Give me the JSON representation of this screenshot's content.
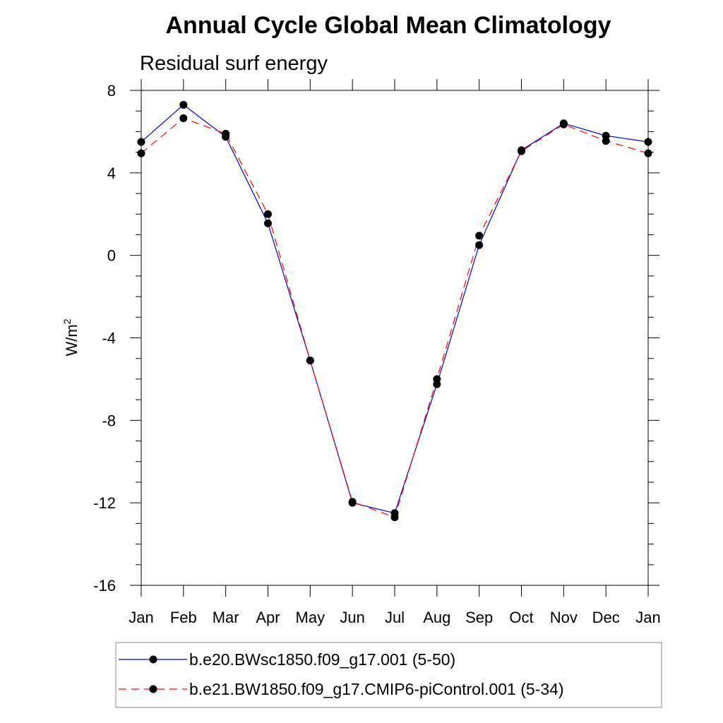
{
  "chart_data": {
    "type": "line",
    "title": "Annual Cycle Global Mean Climatology",
    "subtitle": "Residual surf energy",
    "xlabel": "",
    "ylabel_base": "W/m",
    "ylabel_exp": "2",
    "ylabel": "W/m2",
    "categories": [
      "Jan",
      "Feb",
      "Mar",
      "Apr",
      "May",
      "Jun",
      "Jul",
      "Aug",
      "Sep",
      "Oct",
      "Nov",
      "Dec",
      "Jan"
    ],
    "ylim": [
      -16,
      8
    ],
    "yticks": [
      8,
      4,
      0,
      -4,
      -8,
      -12,
      -16
    ],
    "grid": false,
    "legend_position": "bottom",
    "series": [
      {
        "name": "b.e20.BWsc1850.f09_g17.001 (5-50)",
        "color": "#0000cc",
        "dash": "solid",
        "values": [
          5.5,
          7.3,
          5.75,
          1.55,
          -5.1,
          -12.0,
          -12.5,
          -6.25,
          0.5,
          5.1,
          6.4,
          5.8,
          5.5
        ]
      },
      {
        "name": "b.e21.BW1850.f09_g17.CMIP6-piControl.001 (5-34)",
        "color": "#ff0000",
        "dash": "dashed",
        "values": [
          4.95,
          6.65,
          5.9,
          2.0,
          -5.1,
          -11.95,
          -12.7,
          -6.0,
          0.95,
          5.05,
          6.35,
          5.55,
          4.95
        ]
      }
    ]
  }
}
